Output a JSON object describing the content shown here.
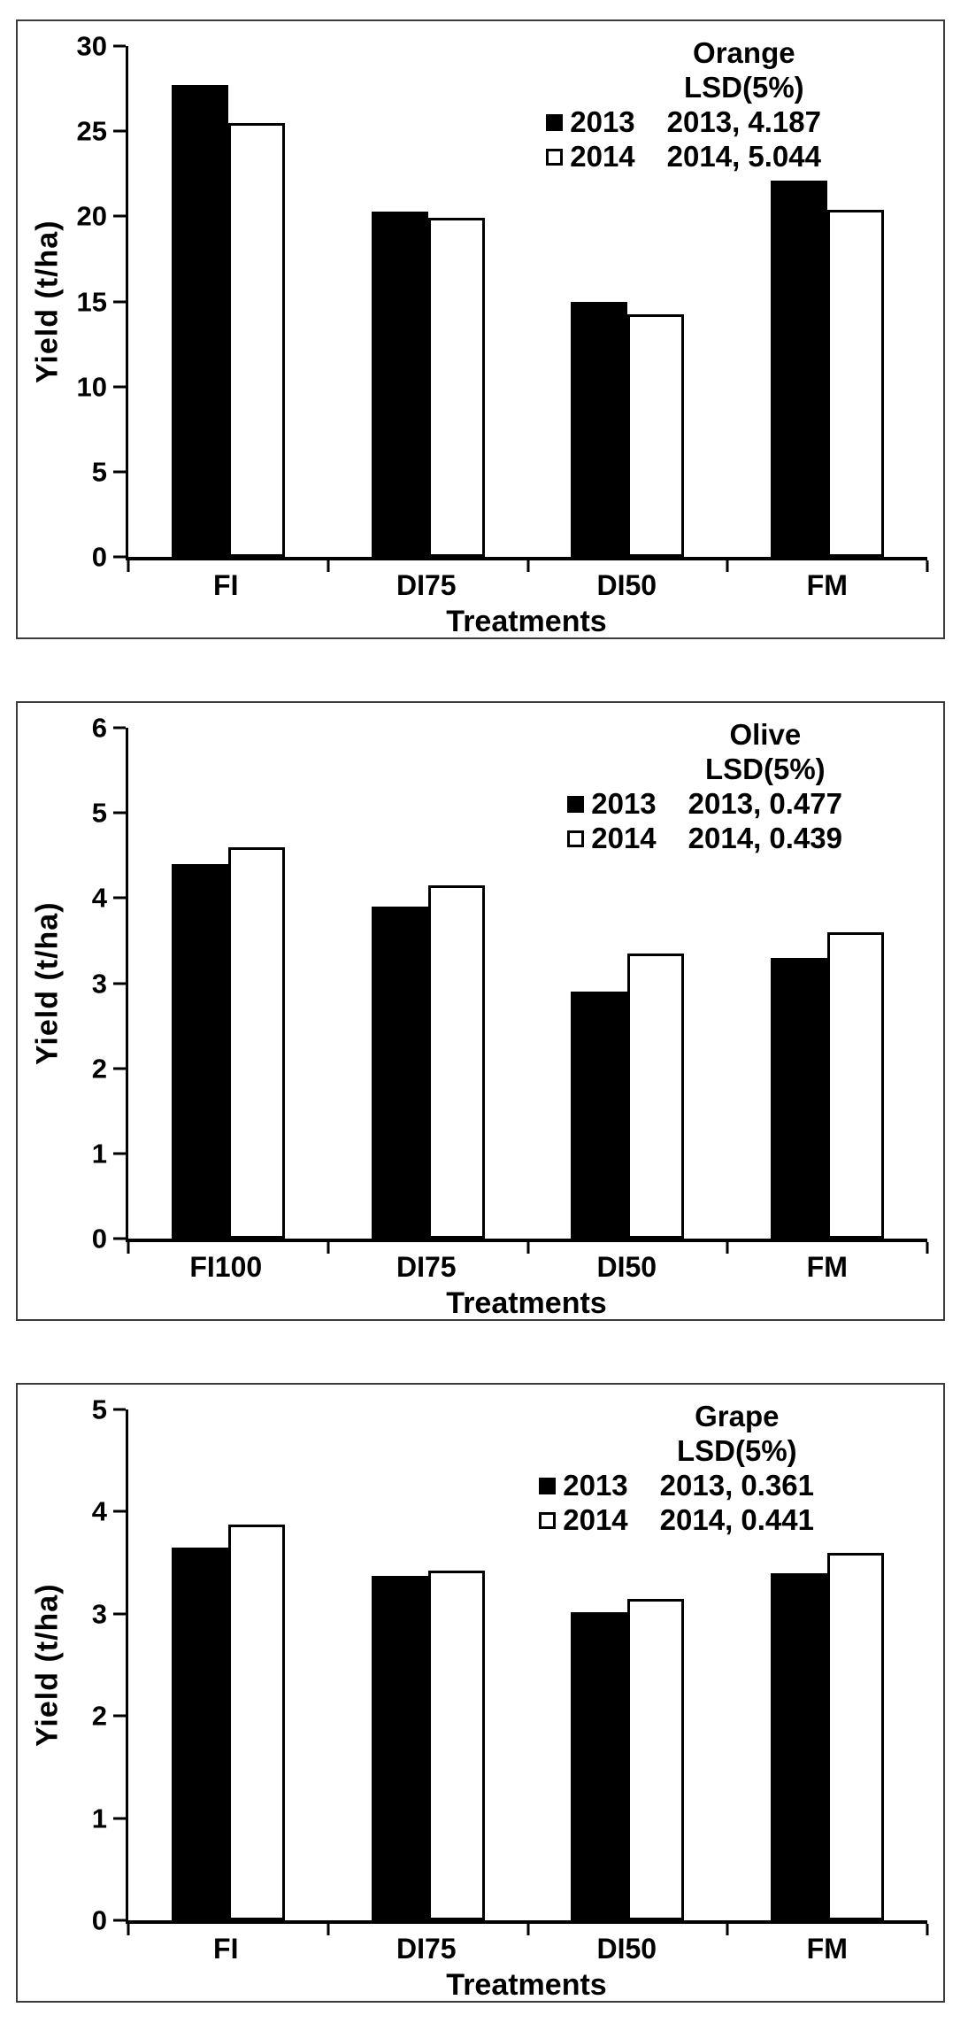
{
  "page": {
    "background": "#ffffff",
    "text_color": "#000000",
    "panel_border_color": "#3c3c3c"
  },
  "colors": {
    "series_2013_fill": "#000000",
    "series_2014_fill": "#ffffff",
    "bar_border": "#000000"
  },
  "chart_data": [
    {
      "type": "bar",
      "title": "Orange",
      "lsd_heading": "LSD(5%)",
      "lsd_values": [
        "2013, 4.187",
        "2014, 5.044"
      ],
      "ylabel": "Yield (t/ha)",
      "xlabel": "Treatments",
      "categories": [
        "FI",
        "DI75",
        "DI50",
        "FM"
      ],
      "ylim": [
        0,
        30
      ],
      "ystep": 5,
      "yticks": [
        "0",
        "5",
        "10",
        "15",
        "20",
        "25",
        "30"
      ],
      "grid": false,
      "legend_position": "upper-right",
      "legend": [
        {
          "label": "2013",
          "swatch": "filled"
        },
        {
          "label": "2014",
          "swatch": "open"
        }
      ],
      "series": [
        {
          "name": "2013",
          "values": [
            27.7,
            20.3,
            15.0,
            22.1
          ]
        },
        {
          "name": "2014",
          "values": [
            25.5,
            19.9,
            14.25,
            20.4
          ]
        }
      ]
    },
    {
      "type": "bar",
      "title": "Olive",
      "lsd_heading": "LSD(5%)",
      "lsd_values": [
        "2013, 0.477",
        "2014, 0.439"
      ],
      "ylabel": "Yield (t/ha)",
      "xlabel": "Treatments",
      "categories": [
        "FI100",
        "DI75",
        "DI50",
        "FM"
      ],
      "ylim": [
        0,
        6
      ],
      "ystep": 1,
      "yticks": [
        "0",
        "1",
        "2",
        "3",
        "4",
        "5",
        "6"
      ],
      "grid": false,
      "legend_position": "upper-right",
      "legend": [
        {
          "label": "2013",
          "swatch": "filled"
        },
        {
          "label": "2014",
          "swatch": "open"
        }
      ],
      "series": [
        {
          "name": "2013",
          "values": [
            4.4,
            3.9,
            2.9,
            3.3
          ]
        },
        {
          "name": "2014",
          "values": [
            4.6,
            4.15,
            3.35,
            3.6
          ]
        }
      ]
    },
    {
      "type": "bar",
      "title": "Grape",
      "lsd_heading": "LSD(5%)",
      "lsd_values": [
        "2013, 0.361",
        "2014, 0.441"
      ],
      "ylabel": "Yield (t/ha)",
      "xlabel": "Treatments",
      "categories": [
        "FI",
        "DI75",
        "DI50",
        "FM"
      ],
      "ylim": [
        0,
        5
      ],
      "ystep": 1,
      "yticks": [
        "0",
        "1",
        "2",
        "3",
        "4",
        "5"
      ],
      "grid": false,
      "legend_position": "upper-right",
      "legend": [
        {
          "label": "2013",
          "swatch": "filled"
        },
        {
          "label": "2014",
          "swatch": "open"
        }
      ],
      "series": [
        {
          "name": "2013",
          "values": [
            3.65,
            3.37,
            3.02,
            3.4
          ]
        },
        {
          "name": "2014",
          "values": [
            3.87,
            3.42,
            3.15,
            3.6
          ]
        }
      ]
    }
  ]
}
